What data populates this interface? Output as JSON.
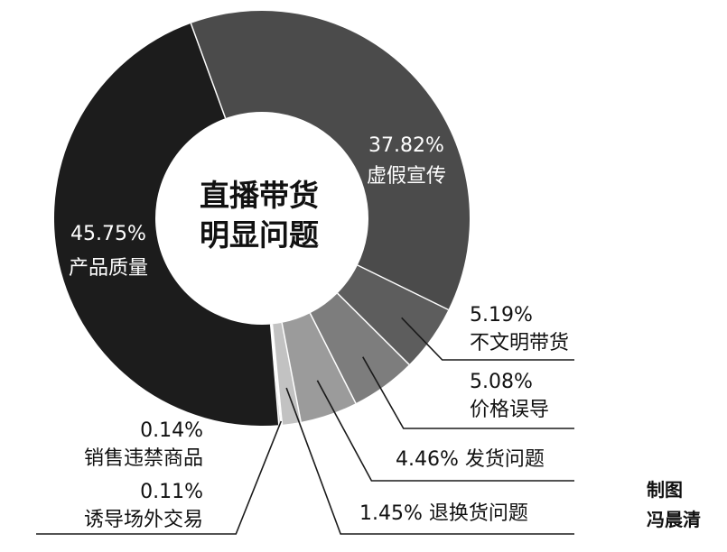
{
  "chart_data": {
    "type": "pie",
    "center_title": [
      "直播带货",
      "明显问题"
    ],
    "series": [
      {
        "name": "虚假宣传",
        "value": 37.82,
        "value_label": "37.82%",
        "color": "#4b4b4b"
      },
      {
        "name": "不文明带货",
        "value": 5.19,
        "value_label": "5.19%",
        "color": "#5d5d5d"
      },
      {
        "name": "价格误导",
        "value": 5.08,
        "value_label": "5.08%",
        "color": "#7d7d7d"
      },
      {
        "name": "发货问题",
        "value": 4.46,
        "value_label": "4.46%",
        "color": "#9b9b9b"
      },
      {
        "name": "退换货问题",
        "value": 1.45,
        "value_label": "1.45%",
        "color": "#c2c2c2"
      },
      {
        "name": "诱导场外交易",
        "value": 0.11,
        "value_label": "0.11%",
        "color": "#dcdcdc"
      },
      {
        "name": "销售违禁商品",
        "value": 0.14,
        "value_label": "0.14%",
        "color": "#b5b5b5"
      },
      {
        "name": "产品质量",
        "value": 45.75,
        "value_label": "45.75%",
        "color": "#1c1c1c"
      }
    ],
    "legend": "none",
    "grid": false
  },
  "credit": {
    "line1": "制图",
    "line2": "冯晨清"
  }
}
